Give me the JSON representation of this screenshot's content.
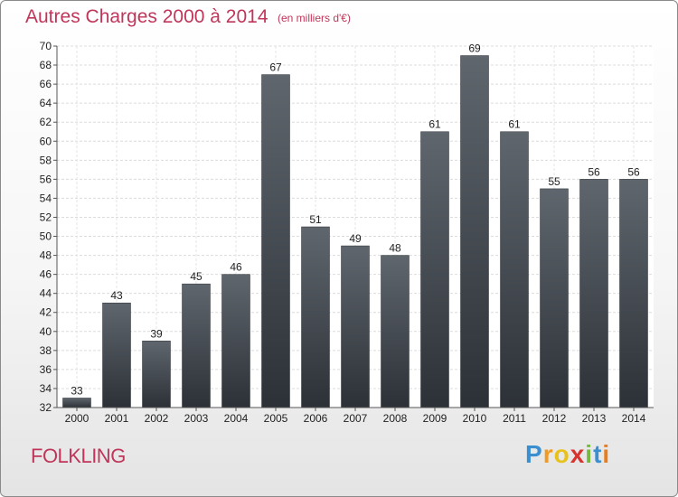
{
  "chart_data": {
    "type": "bar",
    "title": "Autres Charges 2000 à 2014",
    "subtitle": "(en milliers d'€)",
    "categories": [
      "2000",
      "2001",
      "2002",
      "2003",
      "2004",
      "2005",
      "2006",
      "2007",
      "2008",
      "2009",
      "2010",
      "2011",
      "2012",
      "2013",
      "2014"
    ],
    "values": [
      33,
      43,
      39,
      45,
      46,
      67,
      51,
      49,
      48,
      61,
      69,
      61,
      55,
      56,
      56
    ],
    "ylim": [
      32,
      70
    ],
    "yticks": [
      32,
      34,
      36,
      38,
      40,
      42,
      44,
      46,
      48,
      50,
      52,
      54,
      56,
      58,
      60,
      62,
      64,
      66,
      68,
      70
    ],
    "grid": true,
    "bar_color": "#3e444b",
    "accent_color": "#c0365a"
  },
  "location": "FOLKLING",
  "logo": {
    "letters": [
      "P",
      "r",
      "o",
      "x",
      "i",
      "t",
      "i"
    ],
    "colors": [
      "#3a8fd0",
      "#f29a1f",
      "#e8c21b",
      "#d8342f",
      "#77b843",
      "#3a8fd0",
      "#e87d1e"
    ]
  }
}
